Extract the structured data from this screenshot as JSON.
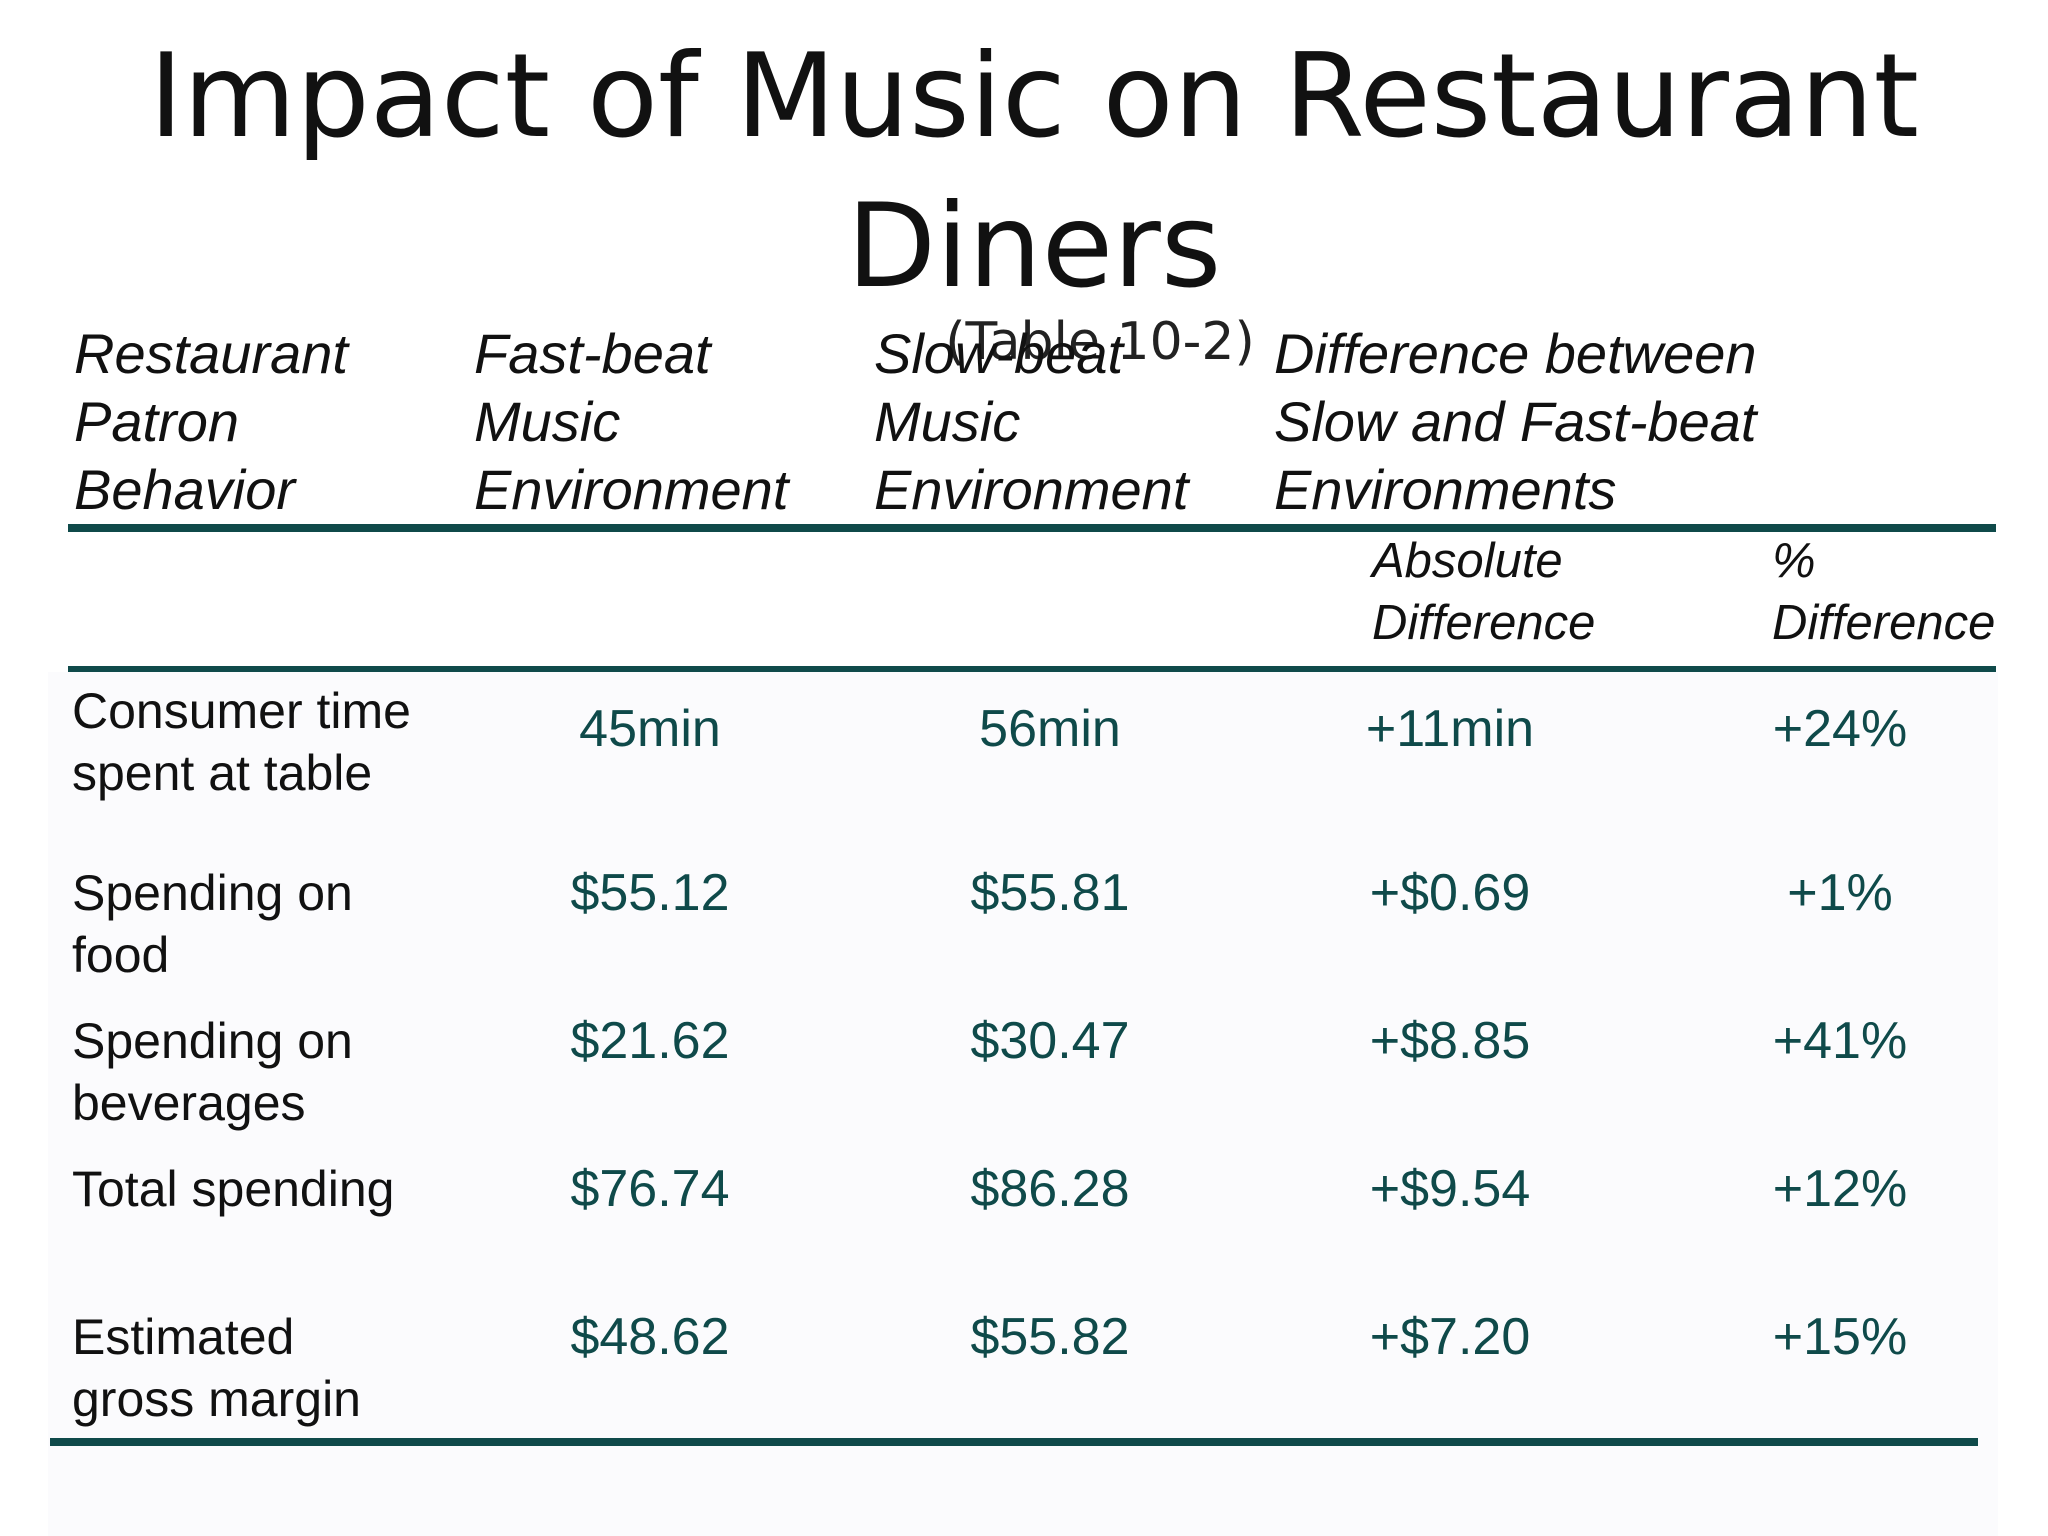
{
  "slide": {
    "title_line1": "Impact of Music on Restaurant",
    "title_line2": "Diners",
    "subtitle": "(Table 10-2)"
  },
  "table": {
    "headers": {
      "behavior": "Restaurant\nPatron\nBehavior",
      "fast": "Fast-beat\nMusic\nEnvironment",
      "slow": "Slow-beat\nMusic\nEnvironment",
      "difference": "Difference between\nSlow and Fast-beat\nEnvironments"
    },
    "subheaders": {
      "absolute": "Absolute\nDifference",
      "percent": "%\nDifference"
    },
    "rows": [
      {
        "label": "Consumer time\nspent at table",
        "fast": "45min",
        "slow": "56min",
        "absolute": "+11min",
        "percent": "+24%"
      },
      {
        "label": "Spending on\nfood",
        "fast": "$55.12",
        "slow": "$55.81",
        "absolute": "+$0.69",
        "percent": "+1%"
      },
      {
        "label": "Spending on\nbeverages",
        "fast": "$21.62",
        "slow": "$30.47",
        "absolute": "+$8.85",
        "percent": "+41%"
      },
      {
        "label": "Total spending",
        "fast": "$76.74",
        "slow": "$86.28",
        "absolute": "+$9.54",
        "percent": "+12%"
      },
      {
        "label": "Estimated\ngross margin",
        "fast": "$48.62",
        "slow": "$55.82",
        "absolute": "+$7.20",
        "percent": "+15%"
      }
    ]
  },
  "colors": {
    "rule": "#0f4a4a",
    "values": "#0f4a4a"
  }
}
